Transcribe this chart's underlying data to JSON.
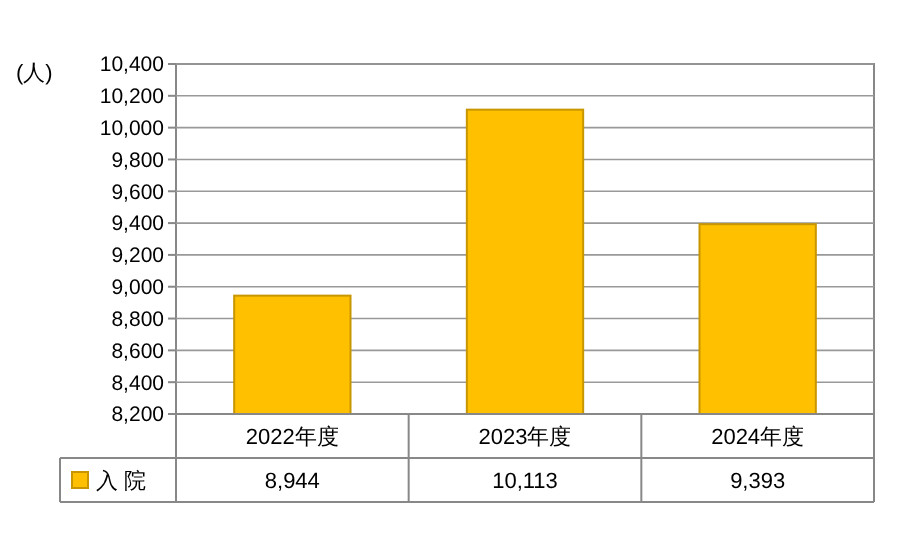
{
  "chart_data": {
    "type": "bar",
    "ylabel": "(人)",
    "categories": [
      "2022年度",
      "2023年度",
      "2024年度"
    ],
    "series": [
      {
        "name": "入 院",
        "color": "#ffc000",
        "values": [
          8944,
          10113,
          9393
        ],
        "value_labels": [
          "8,944",
          "10,113",
          "9,393"
        ]
      }
    ],
    "ylim": [
      8200,
      10400
    ],
    "yticks": [
      {
        "value": 8200,
        "label": "8,200"
      },
      {
        "value": 8400,
        "label": "8,400"
      },
      {
        "value": 8600,
        "label": "8,600"
      },
      {
        "value": 8800,
        "label": "8,800"
      },
      {
        "value": 9000,
        "label": "9,000"
      },
      {
        "value": 9200,
        "label": "9,200"
      },
      {
        "value": 9400,
        "label": "9,400"
      },
      {
        "value": 9600,
        "label": "9,600"
      },
      {
        "value": 9800,
        "label": "9,800"
      },
      {
        "value": 10000,
        "label": "10,000"
      },
      {
        "value": 10200,
        "label": "10,200"
      },
      {
        "value": 10400,
        "label": "10,400"
      }
    ],
    "grid": "y"
  }
}
